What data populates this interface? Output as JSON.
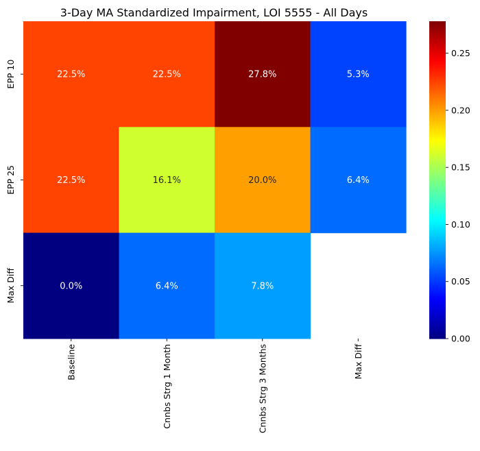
{
  "chart_data": {
    "type": "heatmap",
    "title": "3-Day MA Standardized Impairment, LOI 5555 - All Days",
    "rows": [
      "EPP 10",
      "EPP 25",
      "Max Diff"
    ],
    "columns": [
      "Baseline",
      "Cnnbs Strg 1 Month",
      "Cnnbs Strg 3 Months",
      "Max Diff"
    ],
    "values": [
      [
        0.225,
        0.225,
        0.278,
        0.053
      ],
      [
        0.225,
        0.161,
        0.2,
        0.064
      ],
      [
        0.0,
        0.064,
        0.078,
        null
      ]
    ],
    "labels": [
      [
        "22.5%",
        "22.5%",
        "27.8%",
        "5.3%"
      ],
      [
        "22.5%",
        "16.1%",
        "20.0%",
        "6.4%"
      ],
      [
        "0.0%",
        "6.4%",
        "7.8%",
        ""
      ]
    ],
    "colormap": "jet",
    "vmin": 0.0,
    "vmax": 0.278,
    "colorbar_ticks": [
      "0.00",
      "0.05",
      "0.10",
      "0.15",
      "0.20",
      "0.25"
    ],
    "colorbar_tick_values": [
      0.0,
      0.05,
      0.1,
      0.15,
      0.2,
      0.25
    ],
    "grid": false
  }
}
